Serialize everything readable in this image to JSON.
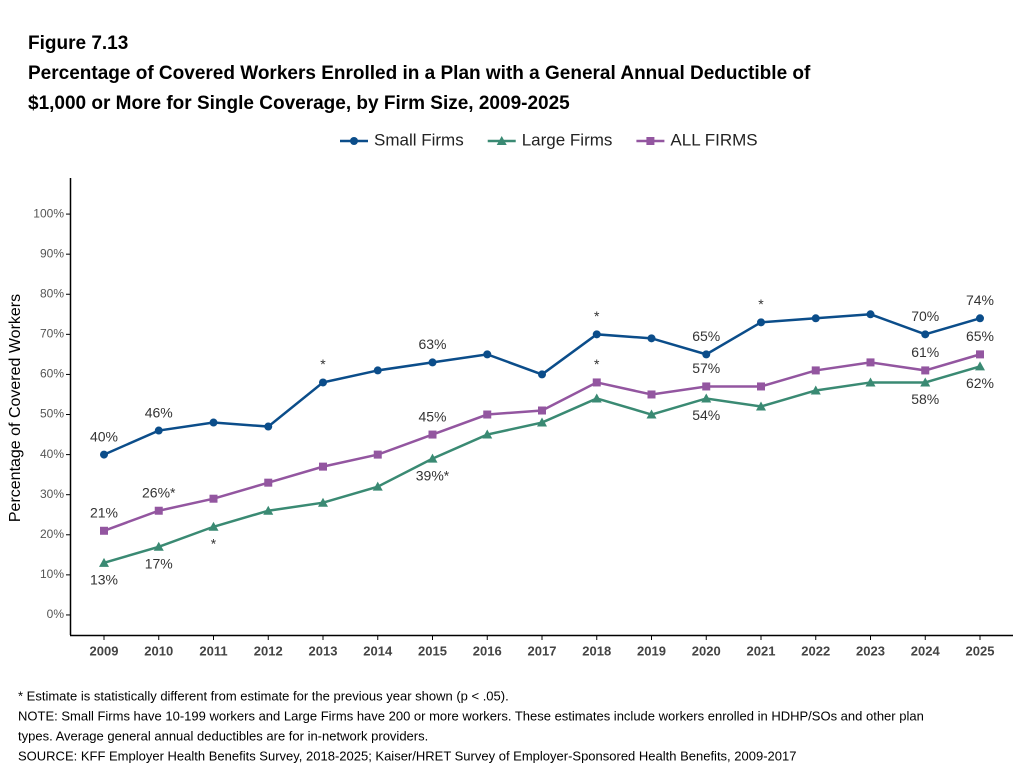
{
  "chart_data": {
    "type": "line",
    "figure_label": "Figure 7.13",
    "title": [
      "Percentage of Covered Workers Enrolled in a Plan with a General Annual Deductible of",
      "$1,000 or More for Single Coverage, by Firm Size, 2009-2025"
    ],
    "y_label": "Percentage of Covered Workers",
    "categories": [
      "2009",
      "2010",
      "2011",
      "2012",
      "2013",
      "2014",
      "2015",
      "2016",
      "2017",
      "2018",
      "2019",
      "2020",
      "2021",
      "2022",
      "2023",
      "2024",
      "2025"
    ],
    "series": [
      {
        "name": "Small Firms",
        "color": "#0b4d8a",
        "marker": "circle",
        "label_position": "above",
        "values": [
          40,
          46,
          48,
          47,
          58,
          61,
          63,
          65,
          60,
          70,
          69,
          65,
          73,
          74,
          75,
          70,
          74
        ],
        "value_labels": [
          "40%",
          "46%",
          null,
          null,
          "*",
          null,
          "63%",
          null,
          null,
          "*",
          null,
          "65%",
          "*",
          null,
          null,
          "70%",
          "74%"
        ]
      },
      {
        "name": "Large Firms",
        "color": "#3a8a73",
        "marker": "triangle",
        "label_position": "below",
        "values": [
          13,
          17,
          22,
          26,
          28,
          32,
          39,
          45,
          48,
          54,
          50,
          54,
          52,
          56,
          58,
          58,
          62
        ],
        "value_labels": [
          "13%",
          "17%",
          "*",
          null,
          null,
          null,
          "39%*",
          null,
          null,
          null,
          null,
          "54%",
          null,
          null,
          null,
          "58%",
          "62%"
        ]
      },
      {
        "name": "ALL FIRMS",
        "color": "#9356a0",
        "marker": "square",
        "label_position": "above",
        "values": [
          21,
          26,
          29,
          33,
          37,
          40,
          45,
          50,
          51,
          58,
          55,
          57,
          57,
          61,
          63,
          61,
          65
        ],
        "value_labels": [
          "21%",
          "26%*",
          null,
          null,
          null,
          null,
          "45%",
          null,
          null,
          "*",
          null,
          "57%",
          null,
          null,
          null,
          "61%",
          "65%"
        ]
      }
    ],
    "ylim": [
      -5,
      109
    ],
    "yticks": [
      {
        "value": 0,
        "label": "0%"
      },
      {
        "value": 10,
        "label": "10%"
      },
      {
        "value": 20,
        "label": "20%"
      },
      {
        "value": 30,
        "label": "30%"
      },
      {
        "value": 40,
        "label": "40%"
      },
      {
        "value": 50,
        "label": "50%"
      },
      {
        "value": 60,
        "label": "60%"
      },
      {
        "value": 70,
        "label": "70%"
      },
      {
        "value": 80,
        "label": "80%"
      },
      {
        "value": 90,
        "label": "90%"
      },
      {
        "value": 100,
        "label": "100%"
      }
    ],
    "grid": false,
    "legend_position": "top",
    "notes": [
      "* Estimate is statistically different from estimate for the previous year shown (p < .05).",
      "NOTE: Small Firms have 10-199 workers and Large Firms have 200 or more workers. These estimates include workers enrolled in HDHP/SOs and other plan",
      "types. Average general annual deductibles are for in-network providers.",
      "SOURCE: KFF Employer Health Benefits Survey, 2018-2025; Kaiser/HRET Survey of Employer-Sponsored Health Benefits, 2009-2017"
    ]
  }
}
